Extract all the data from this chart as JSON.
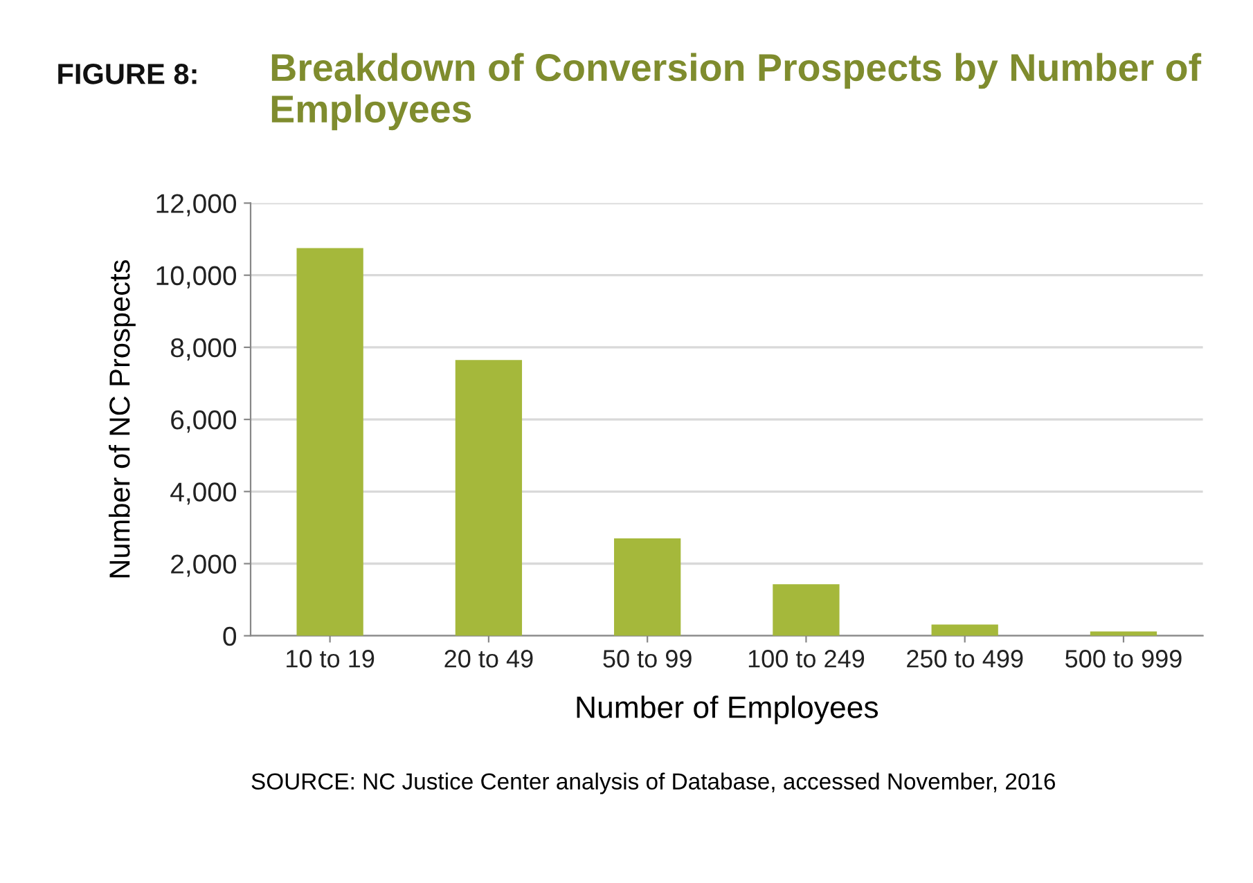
{
  "chart_data": {
    "type": "bar",
    "title": "FIGURE 8:",
    "subtitle": "Breakdown of Conversion Prospects by Number of Employees",
    "xlabel": "Number of Employees",
    "ylabel": "Number of NC Prospects",
    "categories": [
      "10 to 19",
      "20 to 49",
      "50 to 99",
      "100 to 249",
      "250 to 499",
      "500 to 999"
    ],
    "series": [
      {
        "color": "#a5b83b",
        "values": [
          10750,
          7650,
          2700,
          1430,
          310,
          120
        ]
      }
    ],
    "ylim": [
      0,
      12000
    ],
    "yticks": [
      {
        "value": 0,
        "label": "0"
      },
      {
        "value": 2000,
        "label": "2,000"
      },
      {
        "value": 4000,
        "label": "4,000"
      },
      {
        "value": 6000,
        "label": "6,000"
      },
      {
        "value": 8000,
        "label": "8,000"
      },
      {
        "value": 10000,
        "label": "10,000"
      },
      {
        "value": 12000,
        "label": "12,000"
      }
    ],
    "grid": "y",
    "annotations": [
      "SOURCE: NC Justice Center analysis of Database, accessed November, 2016"
    ]
  }
}
